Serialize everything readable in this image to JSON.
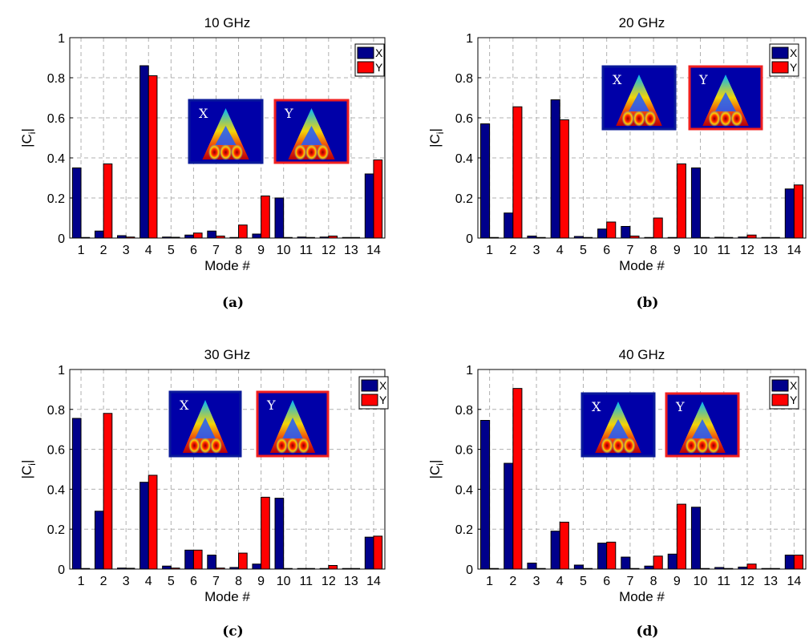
{
  "colors": {
    "series_x": "#00008B",
    "series_y": "#FF0000",
    "grid": "#b0b0b0",
    "inset_bg": "#0000A8",
    "inset_border_x": "#0A1A9A",
    "inset_border_y": "#F02020"
  },
  "chart_data": [
    {
      "type": "bar",
      "title": "10 GHz",
      "caption": "(a)",
      "xlabel": "Mode #",
      "ylabel": "|C_i|",
      "ylim": [
        0,
        1
      ],
      "yticks": [
        "0",
        "0.2",
        "0.4",
        "0.6",
        "0.8",
        "1"
      ],
      "grid": true,
      "legend_position": "top-right",
      "categories": [
        "1",
        "2",
        "3",
        "4",
        "5",
        "6",
        "7",
        "8",
        "9",
        "10",
        "11",
        "12",
        "13",
        "14"
      ],
      "series": [
        {
          "name": "X",
          "values": [
            0.35,
            0.035,
            0.012,
            0.86,
            0.005,
            0.015,
            0.035,
            0.003,
            0.02,
            0.2,
            0.005,
            0.005,
            0.003,
            0.32
          ]
        },
        {
          "name": "Y",
          "values": [
            0.003,
            0.37,
            0.005,
            0.81,
            0.004,
            0.025,
            0.01,
            0.065,
            0.21,
            0.003,
            0.003,
            0.01,
            0.003,
            0.39
          ]
        }
      ],
      "insets": [
        {
          "label": "X"
        },
        {
          "label": "Y"
        }
      ]
    },
    {
      "type": "bar",
      "title": "20 GHz",
      "caption": "(b)",
      "xlabel": "Mode #",
      "ylabel": "|C_i|",
      "ylim": [
        0,
        1
      ],
      "yticks": [
        "0",
        "0.2",
        "0.4",
        "0.6",
        "0.8",
        "1"
      ],
      "grid": true,
      "legend_position": "top-right",
      "categories": [
        "1",
        "2",
        "3",
        "4",
        "5",
        "6",
        "7",
        "8",
        "9",
        "10",
        "11",
        "12",
        "13",
        "14"
      ],
      "series": [
        {
          "name": "X",
          "values": [
            0.57,
            0.125,
            0.01,
            0.69,
            0.008,
            0.045,
            0.058,
            0.003,
            0.003,
            0.35,
            0.004,
            0.005,
            0.003,
            0.245
          ]
        },
        {
          "name": "Y",
          "values": [
            0.003,
            0.655,
            0.003,
            0.59,
            0.003,
            0.08,
            0.01,
            0.1,
            0.37,
            0.003,
            0.003,
            0.015,
            0.003,
            0.265
          ]
        }
      ],
      "insets": [
        {
          "label": "X"
        },
        {
          "label": "Y"
        }
      ]
    },
    {
      "type": "bar",
      "title": "30 GHz",
      "caption": "(c)",
      "xlabel": "Mode #",
      "ylabel": "|C_i|",
      "ylim": [
        0,
        1
      ],
      "yticks": [
        "0",
        "0.2",
        "0.4",
        "0.6",
        "0.8",
        "1"
      ],
      "grid": true,
      "legend_position": "top-right",
      "categories": [
        "1",
        "2",
        "3",
        "4",
        "5",
        "6",
        "7",
        "8",
        "9",
        "10",
        "11",
        "12",
        "13",
        "14"
      ],
      "series": [
        {
          "name": "X",
          "values": [
            0.755,
            0.29,
            0.005,
            0.435,
            0.015,
            0.095,
            0.07,
            0.008,
            0.025,
            0.355,
            0.003,
            0.003,
            0.003,
            0.16
          ]
        },
        {
          "name": "Y",
          "values": [
            0.003,
            0.78,
            0.004,
            0.47,
            0.005,
            0.095,
            0.005,
            0.08,
            0.36,
            0.003,
            0.003,
            0.018,
            0.003,
            0.165
          ]
        }
      ],
      "insets": [
        {
          "label": "X"
        },
        {
          "label": "Y"
        }
      ]
    },
    {
      "type": "bar",
      "title": "40 GHz",
      "caption": "(d)",
      "xlabel": "Mode #",
      "ylabel": "|C_i|",
      "ylim": [
        0,
        1
      ],
      "yticks": [
        "0",
        "0.2",
        "0.4",
        "0.6",
        "0.8",
        "1"
      ],
      "grid": true,
      "legend_position": "top-right",
      "categories": [
        "1",
        "2",
        "3",
        "4",
        "5",
        "6",
        "7",
        "8",
        "9",
        "10",
        "11",
        "12",
        "13",
        "14"
      ],
      "series": [
        {
          "name": "X",
          "values": [
            0.745,
            0.53,
            0.03,
            0.19,
            0.02,
            0.13,
            0.06,
            0.015,
            0.075,
            0.31,
            0.008,
            0.01,
            0.003,
            0.07
          ]
        },
        {
          "name": "Y",
          "values": [
            0.003,
            0.905,
            0.003,
            0.235,
            0.003,
            0.135,
            0.003,
            0.065,
            0.325,
            0.003,
            0.003,
            0.025,
            0.003,
            0.07
          ]
        }
      ],
      "insets": [
        {
          "label": "X"
        },
        {
          "label": "Y"
        }
      ]
    }
  ]
}
